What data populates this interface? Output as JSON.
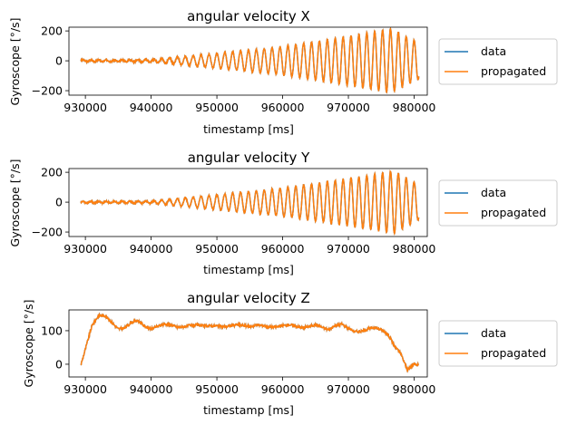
{
  "colors": {
    "data": "#1f77b4",
    "propagated": "#ff7f0e"
  },
  "chart_data": [
    {
      "type": "line",
      "title": "angular velocity X",
      "xlabel": "timestamp [ms]",
      "ylabel": "Gyroscope [°/s]",
      "xlim": [
        927500,
        982000
      ],
      "ylim": [
        -230,
        225
      ],
      "xticks": [
        930000,
        940000,
        950000,
        960000,
        970000,
        980000
      ],
      "yticks": [
        -200,
        0,
        200
      ],
      "legend": {
        "placement": "outside-right",
        "entries": [
          "data",
          "propagated"
        ]
      },
      "grid": false,
      "x_start": 929300,
      "x_end": 980700,
      "series": [
        {
          "name": "data",
          "envelope": [
            [
              929300,
              5
            ],
            [
              940000,
              8
            ],
            [
              950000,
              50
            ],
            [
              960000,
              95
            ],
            [
              970000,
              165
            ],
            [
              976500,
              215
            ],
            [
              978500,
              170
            ],
            [
              980700,
              125
            ]
          ],
          "period_ms": 1200,
          "offset": 0
        },
        {
          "name": "propagated",
          "envelope": [
            [
              929300,
              5
            ],
            [
              940000,
              8
            ],
            [
              950000,
              50
            ],
            [
              960000,
              95
            ],
            [
              970000,
              165
            ],
            [
              976500,
              215
            ],
            [
              978500,
              170
            ],
            [
              980700,
              125
            ]
          ],
          "period_ms": 1200,
          "offset": 0
        }
      ]
    },
    {
      "type": "line",
      "title": "angular velocity Y",
      "xlabel": "timestamp [ms]",
      "ylabel": "Gyroscope [°/s]",
      "xlim": [
        927500,
        982000
      ],
      "ylim": [
        -230,
        225
      ],
      "xticks": [
        930000,
        940000,
        950000,
        960000,
        970000,
        980000
      ],
      "yticks": [
        -200,
        0,
        200
      ],
      "legend": {
        "placement": "outside-right",
        "entries": [
          "data",
          "propagated"
        ]
      },
      "grid": false,
      "x_start": 929300,
      "x_end": 980700,
      "series": [
        {
          "name": "data",
          "envelope": [
            [
              929300,
              5
            ],
            [
              940000,
              8
            ],
            [
              950000,
              50
            ],
            [
              960000,
              95
            ],
            [
              970000,
              160
            ],
            [
              977000,
              210
            ],
            [
              979000,
              160
            ],
            [
              980700,
              120
            ]
          ],
          "period_ms": 1200,
          "offset": 0
        },
        {
          "name": "propagated",
          "envelope": [
            [
              929300,
              5
            ],
            [
              940000,
              8
            ],
            [
              950000,
              50
            ],
            [
              960000,
              95
            ],
            [
              970000,
              160
            ],
            [
              977000,
              210
            ],
            [
              979000,
              160
            ],
            [
              980700,
              120
            ]
          ],
          "period_ms": 1200,
          "offset": 0
        }
      ]
    },
    {
      "type": "line",
      "title": "angular velocity Z",
      "xlabel": "timestamp [ms]",
      "ylabel": "Gyroscope [°/s]",
      "xlim": [
        927500,
        982000
      ],
      "ylim": [
        -38,
        162
      ],
      "xticks": [
        930000,
        940000,
        950000,
        960000,
        970000,
        980000
      ],
      "yticks": [
        0,
        100
      ],
      "legend": {
        "placement": "outside-right",
        "entries": [
          "data",
          "propagated"
        ]
      },
      "grid": false,
      "points": [
        [
          929300,
          -3
        ],
        [
          930000,
          45
        ],
        [
          931000,
          115
        ],
        [
          932000,
          145
        ],
        [
          933000,
          145
        ],
        [
          934000,
          125
        ],
        [
          935000,
          105
        ],
        [
          936000,
          108
        ],
        [
          937000,
          125
        ],
        [
          938000,
          130
        ],
        [
          939000,
          113
        ],
        [
          940000,
          105
        ],
        [
          941000,
          113
        ],
        [
          942000,
          120
        ],
        [
          943000,
          118
        ],
        [
          944000,
          110
        ],
        [
          945000,
          112
        ],
        [
          946000,
          116
        ],
        [
          947000,
          117
        ],
        [
          948000,
          114
        ],
        [
          949000,
          115
        ],
        [
          950000,
          114
        ],
        [
          951000,
          112
        ],
        [
          952000,
          114
        ],
        [
          953000,
          118
        ],
        [
          954000,
          116
        ],
        [
          955000,
          112
        ],
        [
          956000,
          117
        ],
        [
          957000,
          116
        ],
        [
          958000,
          111
        ],
        [
          959000,
          111
        ],
        [
          960000,
          115
        ],
        [
          961000,
          118
        ],
        [
          962000,
          114
        ],
        [
          963000,
          108
        ],
        [
          964000,
          113
        ],
        [
          965000,
          118
        ],
        [
          966000,
          110
        ],
        [
          967000,
          103
        ],
        [
          968000,
          115
        ],
        [
          969000,
          120
        ],
        [
          970000,
          108
        ],
        [
          971000,
          97
        ],
        [
          972000,
          98
        ],
        [
          973000,
          105
        ],
        [
          974000,
          110
        ],
        [
          975000,
          103
        ],
        [
          976000,
          90
        ],
        [
          977000,
          55
        ],
        [
          978000,
          30
        ],
        [
          979000,
          -18
        ],
        [
          979500,
          -8
        ],
        [
          980000,
          2
        ],
        [
          980700,
          -2
        ]
      ],
      "noise": 4,
      "series": [
        {
          "name": "data"
        },
        {
          "name": "propagated"
        }
      ]
    }
  ]
}
